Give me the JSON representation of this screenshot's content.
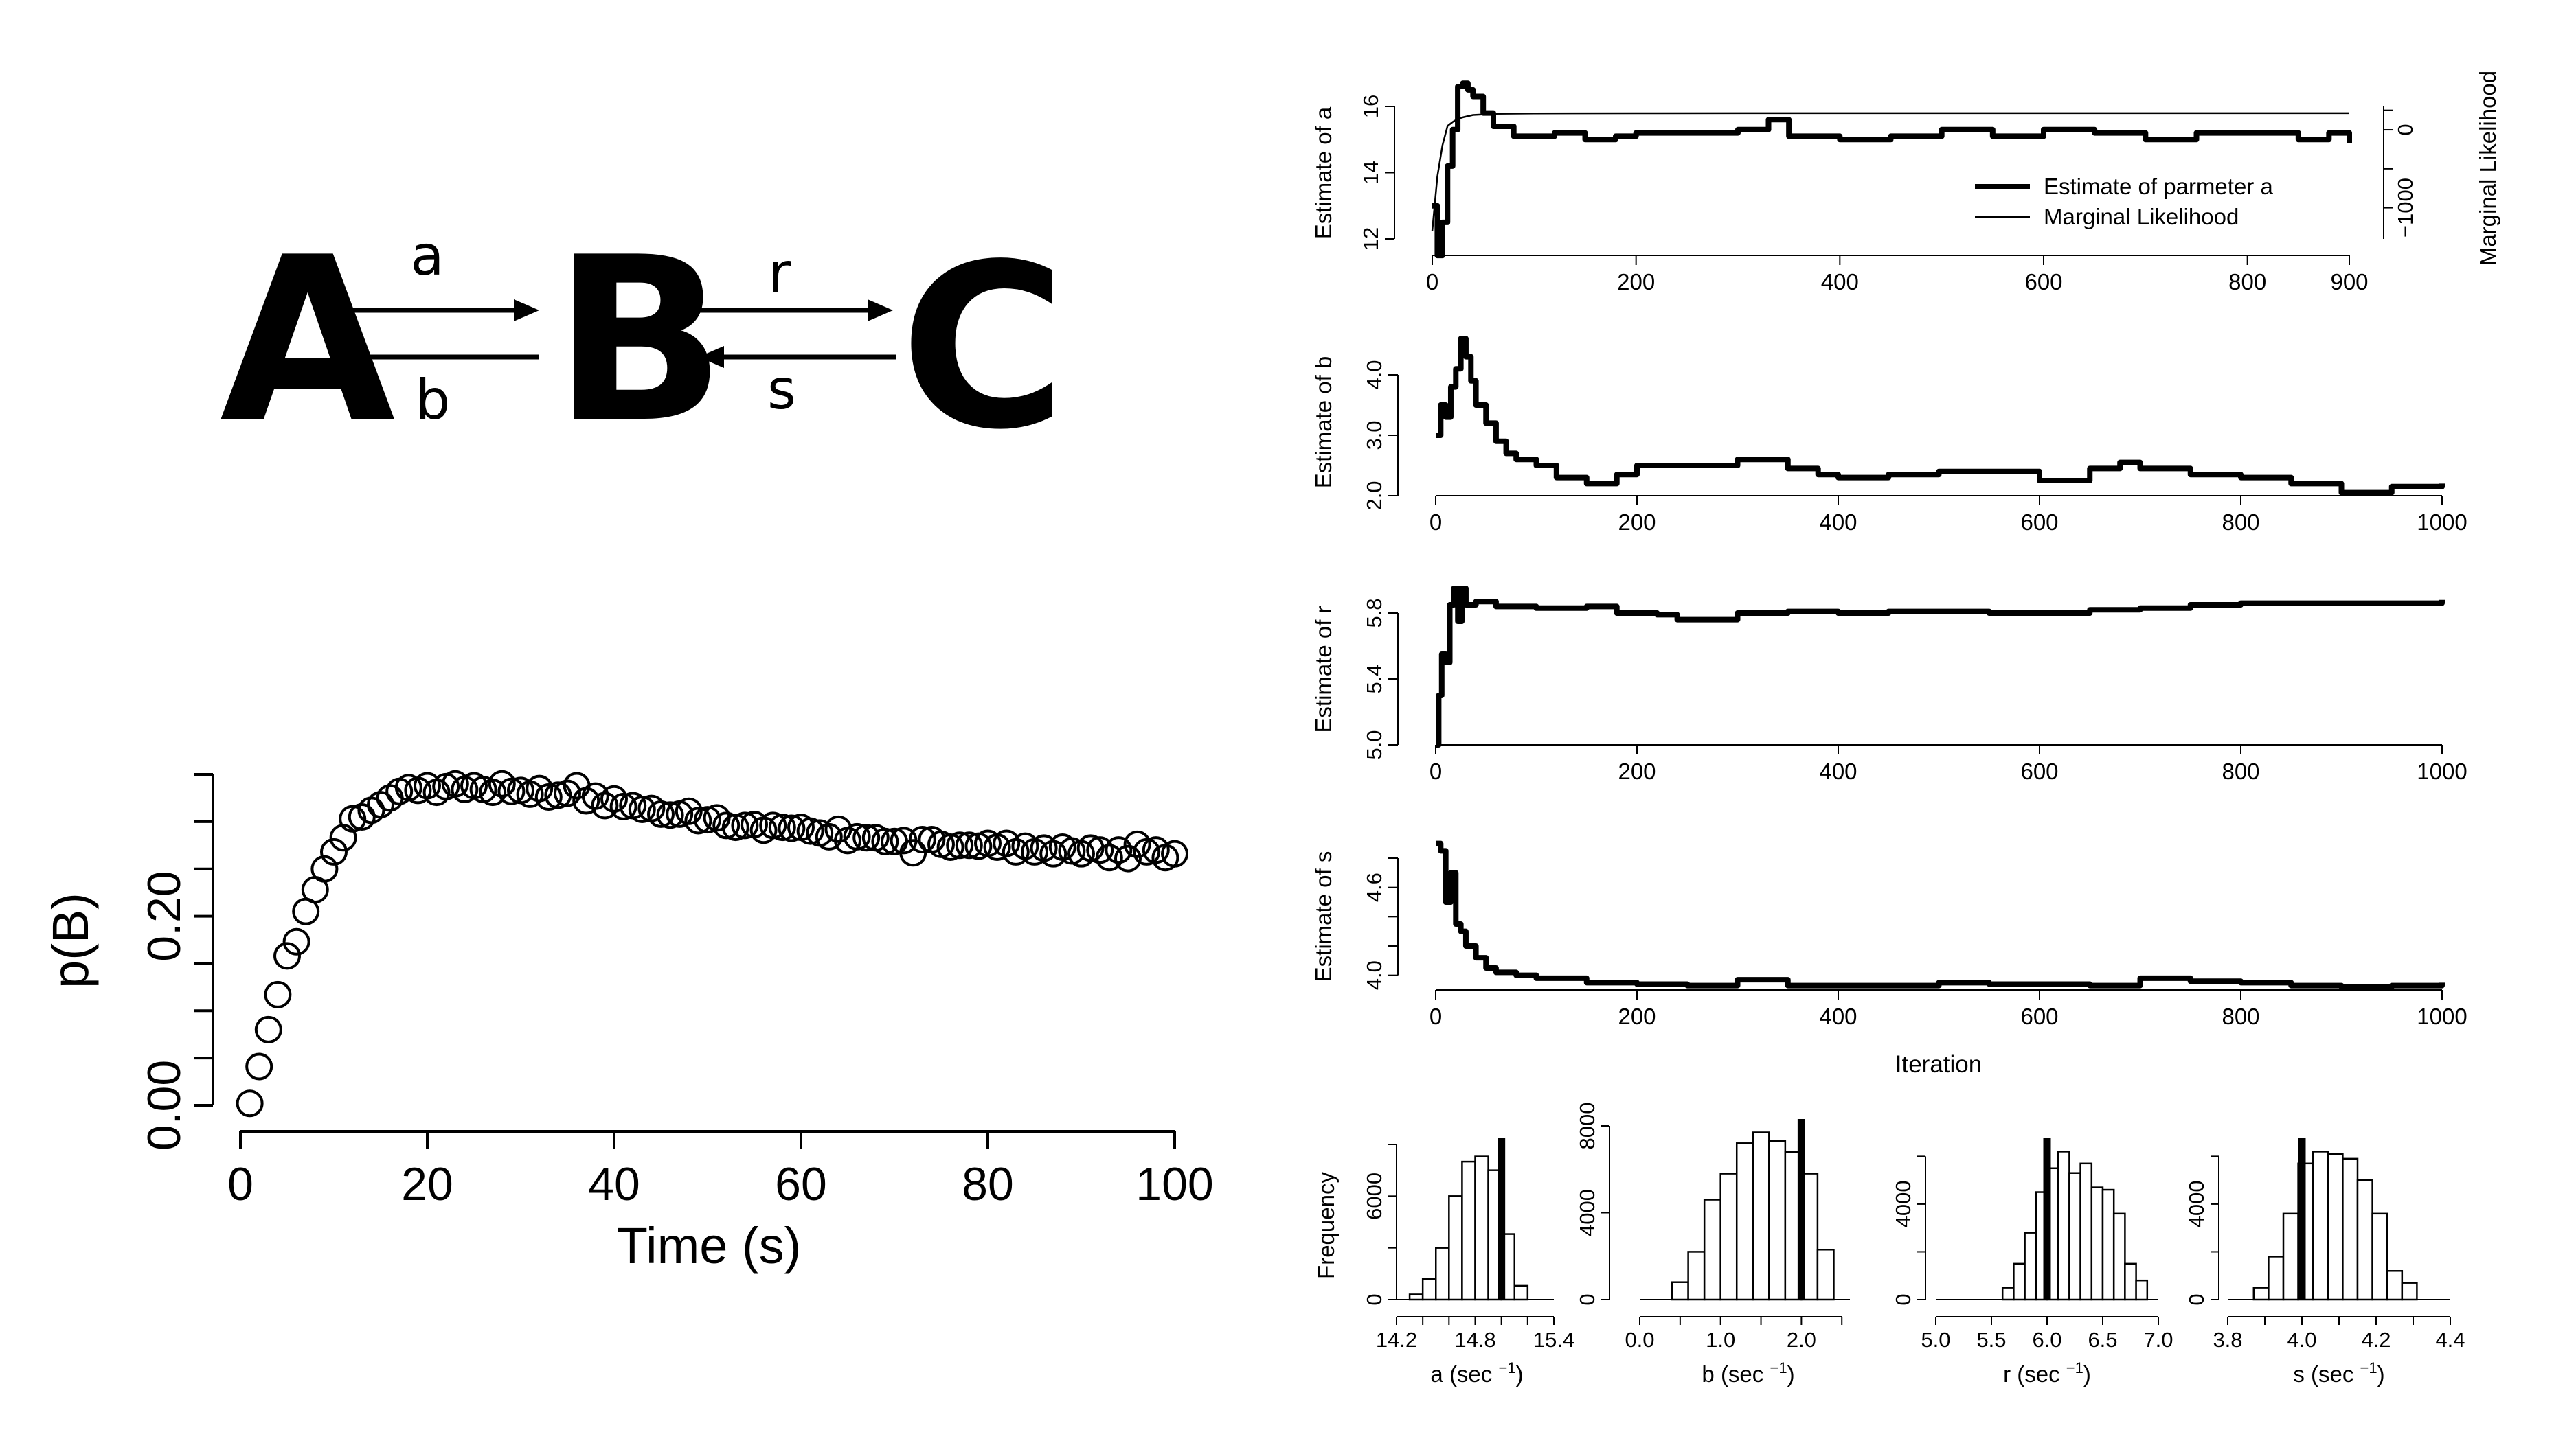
{
  "reaction": {
    "species": [
      "A",
      "B",
      "C"
    ],
    "rates": {
      "forward_ab": "a",
      "backward_ab": "b",
      "forward_bc": "r",
      "backward_bc": "s"
    }
  },
  "chart_data": [
    {
      "id": "pB",
      "type": "scatter",
      "xlabel": "Time (s)",
      "ylabel": "p(B)",
      "xlim": [
        0,
        100
      ],
      "ylim": [
        0,
        0.35
      ],
      "x_ticks": [
        "0",
        "20",
        "40",
        "60",
        "80",
        "100"
      ],
      "y_ticks": [
        "0.00",
        "0.20"
      ],
      "y_tick_values": [
        0.0,
        0.2
      ],
      "y_minor_ticks": [
        0.05,
        0.1,
        0.15,
        0.25,
        0.3,
        0.35
      ],
      "marker": "open-circle",
      "x": [
        1,
        2,
        3,
        4,
        5,
        6,
        7,
        8,
        9,
        10,
        11,
        12,
        13,
        14,
        15,
        16,
        17,
        18,
        19,
        20,
        21,
        22,
        23,
        24,
        25,
        26,
        27,
        28,
        29,
        30,
        31,
        32,
        33,
        34,
        35,
        36,
        37,
        38,
        39,
        40,
        41,
        42,
        43,
        44,
        45,
        46,
        47,
        48,
        49,
        50,
        51,
        52,
        53,
        54,
        55,
        56,
        57,
        58,
        59,
        60,
        61,
        62,
        63,
        64,
        65,
        66,
        67,
        68,
        69,
        70,
        71,
        72,
        73,
        74,
        75,
        76,
        77,
        78,
        79,
        80,
        81,
        82,
        83,
        84,
        85,
        86,
        87,
        88,
        89,
        90,
        91,
        92,
        93,
        94,
        95,
        96,
        97,
        98,
        99,
        100
      ],
      "y": [
        0.002,
        0.041,
        0.08,
        0.117,
        0.158,
        0.173,
        0.205,
        0.228,
        0.25,
        0.268,
        0.283,
        0.303,
        0.305,
        0.312,
        0.318,
        0.325,
        0.332,
        0.336,
        0.333,
        0.338,
        0.331,
        0.337,
        0.34,
        0.334,
        0.338,
        0.334,
        0.331,
        0.34,
        0.332,
        0.333,
        0.329,
        0.335,
        0.326,
        0.328,
        0.33,
        0.338,
        0.322,
        0.327,
        0.317,
        0.324,
        0.316,
        0.317,
        0.313,
        0.314,
        0.308,
        0.307,
        0.308,
        0.311,
        0.301,
        0.302,
        0.304,
        0.296,
        0.294,
        0.296,
        0.297,
        0.291,
        0.296,
        0.294,
        0.293,
        0.294,
        0.29,
        0.288,
        0.284,
        0.292,
        0.28,
        0.284,
        0.283,
        0.283,
        0.279,
        0.279,
        0.28,
        0.267,
        0.281,
        0.281,
        0.276,
        0.273,
        0.275,
        0.275,
        0.274,
        0.277,
        0.273,
        0.277,
        0.268,
        0.274,
        0.268,
        0.272,
        0.266,
        0.273,
        0.269,
        0.266,
        0.272,
        0.27,
        0.262,
        0.27,
        0.261,
        0.276,
        0.268,
        0.27,
        0.262,
        0.266
      ],
      "grid": false
    },
    {
      "id": "trace_a",
      "type": "line",
      "ylabel": "Estimate of a",
      "y2label": "Marginal Likelihood",
      "xlim": [
        0,
        900
      ],
      "ylim": [
        12,
        16
      ],
      "y2lim": [
        -1400,
        300
      ],
      "x_ticks": [
        0,
        200,
        400,
        600,
        800,
        900
      ],
      "y_ticks": [
        12,
        14,
        16
      ],
      "y2_ticks": [
        0,
        -1000
      ],
      "y2_tick_labels": [
        "0",
        "−1000"
      ],
      "legend": [
        "Estimate of parmeter a",
        "Marginal Likelihood"
      ],
      "legend_position": "lower-right",
      "series": [
        {
          "name": "Estimate of parmeter a",
          "x": [
            0,
            5,
            10,
            15,
            20,
            25,
            30,
            35,
            40,
            50,
            60,
            80,
            100,
            120,
            150,
            180,
            200,
            250,
            300,
            330,
            350,
            400,
            450,
            500,
            550,
            600,
            650,
            700,
            750,
            800,
            850,
            880,
            900
          ],
          "y": [
            13.0,
            11.5,
            12.5,
            14.2,
            15.3,
            16.6,
            16.7,
            16.5,
            16.3,
            15.8,
            15.4,
            15.1,
            15.1,
            15.2,
            15.0,
            15.1,
            15.2,
            15.2,
            15.3,
            15.6,
            15.1,
            15.0,
            15.1,
            15.3,
            15.1,
            15.3,
            15.2,
            15.0,
            15.2,
            15.2,
            15.0,
            15.2,
            14.9
          ]
        },
        {
          "name": "Marginal Likelihood",
          "x": [
            0,
            5,
            10,
            15,
            20,
            25,
            30,
            40,
            60,
            100,
            200,
            400,
            600,
            800,
            900
          ],
          "y": [
            -1300,
            -600,
            -200,
            50,
            100,
            140,
            160,
            190,
            205,
            210,
            212,
            213,
            213,
            213,
            213
          ]
        }
      ]
    },
    {
      "id": "trace_b",
      "type": "line",
      "ylabel": "Estimate of b",
      "xlim": [
        0,
        1000
      ],
      "ylim": [
        2.0,
        4.5
      ],
      "x_ticks": [
        0,
        200,
        400,
        600,
        800,
        1000
      ],
      "y_ticks": [
        "2.0",
        "3.0",
        "4.0"
      ],
      "y_tick_values": [
        2.0,
        3.0,
        4.0
      ],
      "series": [
        {
          "x": [
            0,
            5,
            10,
            15,
            20,
            25,
            30,
            35,
            40,
            50,
            60,
            70,
            80,
            100,
            120,
            150,
            180,
            200,
            250,
            300,
            330,
            350,
            380,
            400,
            450,
            500,
            550,
            600,
            650,
            680,
            700,
            750,
            800,
            850,
            900,
            950,
            1000
          ],
          "y": [
            3.0,
            3.5,
            3.3,
            3.8,
            4.1,
            4.6,
            4.3,
            3.9,
            3.5,
            3.2,
            2.9,
            2.7,
            2.6,
            2.5,
            2.3,
            2.2,
            2.35,
            2.5,
            2.5,
            2.6,
            2.6,
            2.45,
            2.35,
            2.3,
            2.35,
            2.4,
            2.4,
            2.25,
            2.45,
            2.55,
            2.45,
            2.35,
            2.3,
            2.2,
            2.05,
            2.15,
            2.2
          ]
        }
      ]
    },
    {
      "id": "trace_r",
      "type": "line",
      "ylabel": "Estimate of r",
      "xlim": [
        0,
        1000
      ],
      "ylim": [
        5.0,
        5.95
      ],
      "x_ticks": [
        0,
        200,
        400,
        600,
        800,
        1000
      ],
      "y_ticks": [
        "5.0",
        "5.4",
        "5.8"
      ],
      "y_tick_values": [
        5.0,
        5.4,
        5.8
      ],
      "series": [
        {
          "x": [
            0,
            3,
            6,
            10,
            14,
            18,
            22,
            26,
            30,
            40,
            60,
            100,
            150,
            180,
            220,
            240,
            300,
            350,
            400,
            450,
            500,
            550,
            600,
            650,
            700,
            750,
            800,
            900,
            950,
            1000
          ],
          "y": [
            5.0,
            5.3,
            5.55,
            5.5,
            5.85,
            5.95,
            5.75,
            5.95,
            5.85,
            5.87,
            5.84,
            5.83,
            5.84,
            5.8,
            5.79,
            5.76,
            5.8,
            5.81,
            5.8,
            5.81,
            5.81,
            5.8,
            5.8,
            5.82,
            5.83,
            5.85,
            5.86,
            5.86,
            5.86,
            5.88
          ]
        }
      ]
    },
    {
      "id": "trace_s",
      "type": "line",
      "xlabel": "Iteration",
      "ylabel": "Estimate of s",
      "xlim": [
        0,
        1000
      ],
      "ylim": [
        3.9,
        4.95
      ],
      "x_ticks": [
        0,
        200,
        400,
        600,
        800,
        1000
      ],
      "y_ticks": [
        "4.0",
        "4.6"
      ],
      "y_tick_values": [
        4.0,
        4.6
      ],
      "y_minor_ticks": [
        4.2,
        4.4,
        4.8
      ],
      "series": [
        {
          "x": [
            0,
            5,
            10,
            15,
            20,
            25,
            30,
            40,
            50,
            60,
            80,
            100,
            150,
            200,
            250,
            300,
            350,
            400,
            450,
            500,
            550,
            600,
            650,
            700,
            750,
            800,
            850,
            900,
            950,
            1000
          ],
          "y": [
            4.9,
            4.85,
            4.5,
            4.7,
            4.35,
            4.3,
            4.2,
            4.12,
            4.05,
            4.02,
            4.0,
            3.98,
            3.95,
            3.94,
            3.93,
            3.97,
            3.93,
            3.93,
            3.93,
            3.95,
            3.94,
            3.94,
            3.93,
            3.98,
            3.96,
            3.95,
            3.93,
            3.92,
            3.93,
            3.95
          ]
        }
      ]
    },
    {
      "id": "hist_a",
      "type": "bar",
      "xlabel": "a (sec",
      "xlabel_superscript": "−1",
      "xlabel_suffix": ")",
      "ylabel": "Frequency",
      "xlim": [
        14.2,
        15.4
      ],
      "ylim": [
        0,
        9000
      ],
      "x_ticks": [
        "14.2",
        "14.8",
        "15.4"
      ],
      "x_tick_values": [
        14.2,
        14.8,
        15.4
      ],
      "x_minor_ticks": [
        14.4,
        14.6,
        15.0,
        15.2
      ],
      "y_ticks": [
        "0",
        "6000"
      ],
      "y_tick_values": [
        0,
        6000
      ],
      "y_minor_ticks": [
        3000,
        9000
      ],
      "bin_edges": [
        14.3,
        14.4,
        14.5,
        14.6,
        14.7,
        14.8,
        14.9,
        15.0,
        15.1,
        15.2
      ],
      "values": [
        300,
        1200,
        3000,
        6000,
        8000,
        8300,
        7500,
        3800,
        800
      ],
      "true_value": 15.0,
      "interval": [
        14.45,
        15.0
      ]
    },
    {
      "id": "hist_b",
      "type": "bar",
      "xlabel": "b (sec",
      "xlabel_superscript": "−1",
      "xlabel_suffix": ")",
      "xlim": [
        0.0,
        2.6
      ],
      "ylim": [
        0,
        8000
      ],
      "x_ticks": [
        "0.0",
        "1.0",
        "2.0"
      ],
      "x_tick_values": [
        0.0,
        1.0,
        2.0
      ],
      "x_minor_ticks": [
        0.5,
        1.5,
        2.5
      ],
      "y_ticks": [
        "0",
        "4000",
        "8000"
      ],
      "y_tick_values": [
        0,
        4000,
        8000
      ],
      "bin_edges": [
        0.4,
        0.6,
        0.8,
        1.0,
        1.2,
        1.4,
        1.6,
        1.8,
        2.0,
        2.2,
        2.4
      ],
      "values": [
        800,
        2200,
        4600,
        5800,
        7200,
        7700,
        7300,
        6800,
        5800,
        2300
      ],
      "true_value": 2.0,
      "interval": [
        0.65,
        2.15
      ]
    },
    {
      "id": "hist_r",
      "type": "bar",
      "xlabel": "r (sec",
      "xlabel_superscript": "−1",
      "xlabel_suffix": ")",
      "xlim": [
        5.0,
        7.0
      ],
      "ylim": [
        0,
        6500
      ],
      "x_ticks": [
        "5.0",
        "5.5",
        "6.0",
        "6.5",
        "7.0"
      ],
      "x_tick_values": [
        5.0,
        5.5,
        6.0,
        6.5,
        7.0
      ],
      "y_ticks": [
        "0",
        "4000"
      ],
      "y_tick_values": [
        0,
        4000
      ],
      "y_minor_ticks": [
        2000,
        6000
      ],
      "bin_edges": [
        5.6,
        5.7,
        5.8,
        5.9,
        6.0,
        6.1,
        6.2,
        6.3,
        6.4,
        6.5,
        6.6,
        6.7,
        6.8,
        6.9
      ],
      "values": [
        500,
        1500,
        2800,
        4500,
        5500,
        6200,
        5300,
        5700,
        4700,
        4600,
        3600,
        1500,
        800
      ],
      "true_value": 6.0,
      "interval": [
        5.7,
        6.85
      ]
    },
    {
      "id": "hist_s",
      "type": "bar",
      "xlabel": "s (sec",
      "xlabel_superscript": "−1",
      "xlabel_suffix": ")",
      "xlim": [
        3.8,
        4.4
      ],
      "ylim": [
        0,
        6500
      ],
      "x_ticks": [
        "3.8",
        "4.0",
        "4.2",
        "4.4"
      ],
      "x_tick_values": [
        3.8,
        4.0,
        4.2,
        4.4
      ],
      "x_minor_ticks": [
        3.9,
        4.1,
        4.3
      ],
      "y_ticks": [
        "0",
        "4000"
      ],
      "y_tick_values": [
        0,
        4000
      ],
      "y_minor_ticks": [
        2000,
        6000
      ],
      "bin_edges": [
        3.87,
        3.91,
        3.95,
        3.99,
        4.03,
        4.07,
        4.11,
        4.15,
        4.19,
        4.23,
        4.27,
        4.31
      ],
      "values": [
        500,
        1800,
        3600,
        5700,
        6200,
        6100,
        5900,
        5000,
        3600,
        1200,
        700
      ],
      "true_value": 4.0,
      "interval": [
        3.9,
        4.3
      ]
    }
  ]
}
